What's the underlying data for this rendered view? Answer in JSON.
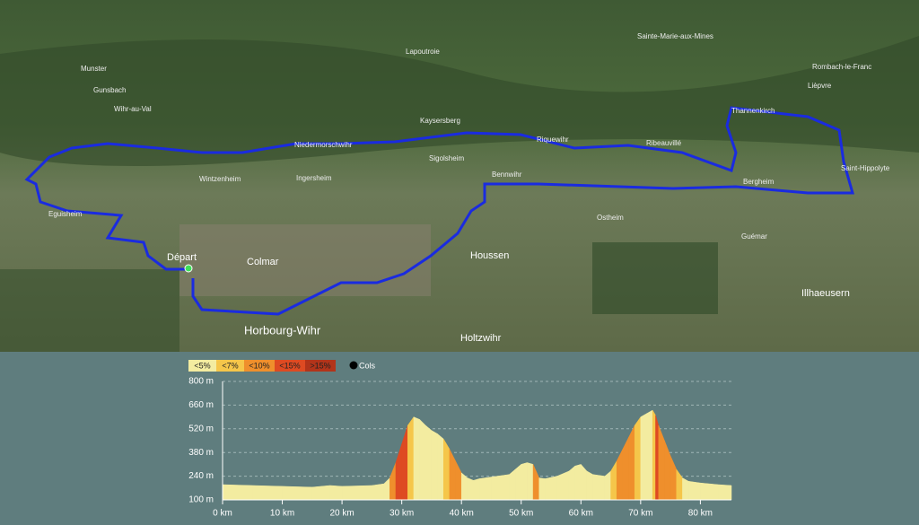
{
  "map": {
    "places": [
      "Munster",
      "Gunsbach",
      "Wihr-au-Val",
      "Lapoutroie",
      "Sainte-Marie-aux-Mines",
      "Rombach-le-Franc",
      "Lièpvre",
      "Thannenkirch",
      "Kaysersberg",
      "Niedermorschwihr",
      "Riquewihr",
      "Ribeauvillé",
      "Sigolsheim",
      "Bennwihr",
      "Wintzenheim",
      "Ingersheim",
      "Bergheim",
      "Saint-Hippolyte",
      "Eguisheim",
      "Ostheim",
      "Guémar",
      "Départ",
      "Colmar",
      "Houssen",
      "Illhaeusern",
      "Horbourg-Wihr",
      "Holtzwihr"
    ]
  },
  "chart_data": {
    "type": "area",
    "legend": [
      {
        "value": 5,
        "label": "<5%",
        "color": "#f3eca0"
      },
      {
        "value": 7,
        "label": "<7%",
        "color": "#f5c64a"
      },
      {
        "value": 10,
        "label": "<10%",
        "color": "#ef8f2c"
      },
      {
        "value": 15,
        "label": "<15%",
        "color": "#de4a22"
      },
      {
        "value": 15,
        "label": ">15%",
        "color": "#b2341a"
      }
    ],
    "cols_label": "Cols",
    "x": [
      0,
      5,
      10,
      15,
      18,
      20,
      25,
      27,
      28,
      29,
      30,
      31,
      32,
      33,
      34,
      35,
      36,
      37,
      38,
      39,
      40,
      41,
      42,
      43,
      45,
      48,
      49,
      50,
      51,
      52,
      53,
      54,
      56,
      58,
      59,
      60,
      61,
      62,
      64,
      65,
      66,
      67,
      68,
      69,
      70,
      71,
      72,
      72.5,
      73,
      74,
      75,
      76,
      77,
      78,
      80,
      83,
      85.2
    ],
    "values": [
      190,
      185,
      180,
      175,
      185,
      180,
      185,
      195,
      230,
      320,
      430,
      540,
      590,
      575,
      540,
      510,
      490,
      460,
      400,
      330,
      260,
      230,
      215,
      225,
      235,
      250,
      280,
      310,
      320,
      310,
      230,
      225,
      240,
      270,
      300,
      310,
      270,
      250,
      240,
      270,
      330,
      400,
      470,
      540,
      590,
      610,
      630,
      600,
      540,
      450,
      360,
      280,
      230,
      210,
      200,
      190,
      185
    ],
    "xlim": [
      0,
      85.2
    ],
    "ylim": [
      100,
      800
    ],
    "xticks": [
      {
        "value": 0,
        "label": "0 km"
      },
      {
        "value": 10,
        "label": "10 km"
      },
      {
        "value": 20,
        "label": "20 km"
      },
      {
        "value": 30,
        "label": "30 km"
      },
      {
        "value": 40,
        "label": "40 km"
      },
      {
        "value": 50,
        "label": "50 km"
      },
      {
        "value": 60,
        "label": "60 km"
      },
      {
        "value": 70,
        "label": "70 km"
      },
      {
        "value": 80,
        "label": "80 km"
      }
    ],
    "yticks": [
      {
        "value": 100,
        "label": "100 m"
      },
      {
        "value": 240,
        "label": "240 m"
      },
      {
        "value": 380,
        "label": "380 m"
      },
      {
        "value": 520,
        "label": "520 m"
      },
      {
        "value": 660,
        "label": "660 m"
      },
      {
        "value": 800,
        "label": "800 m"
      }
    ],
    "grid": true
  }
}
